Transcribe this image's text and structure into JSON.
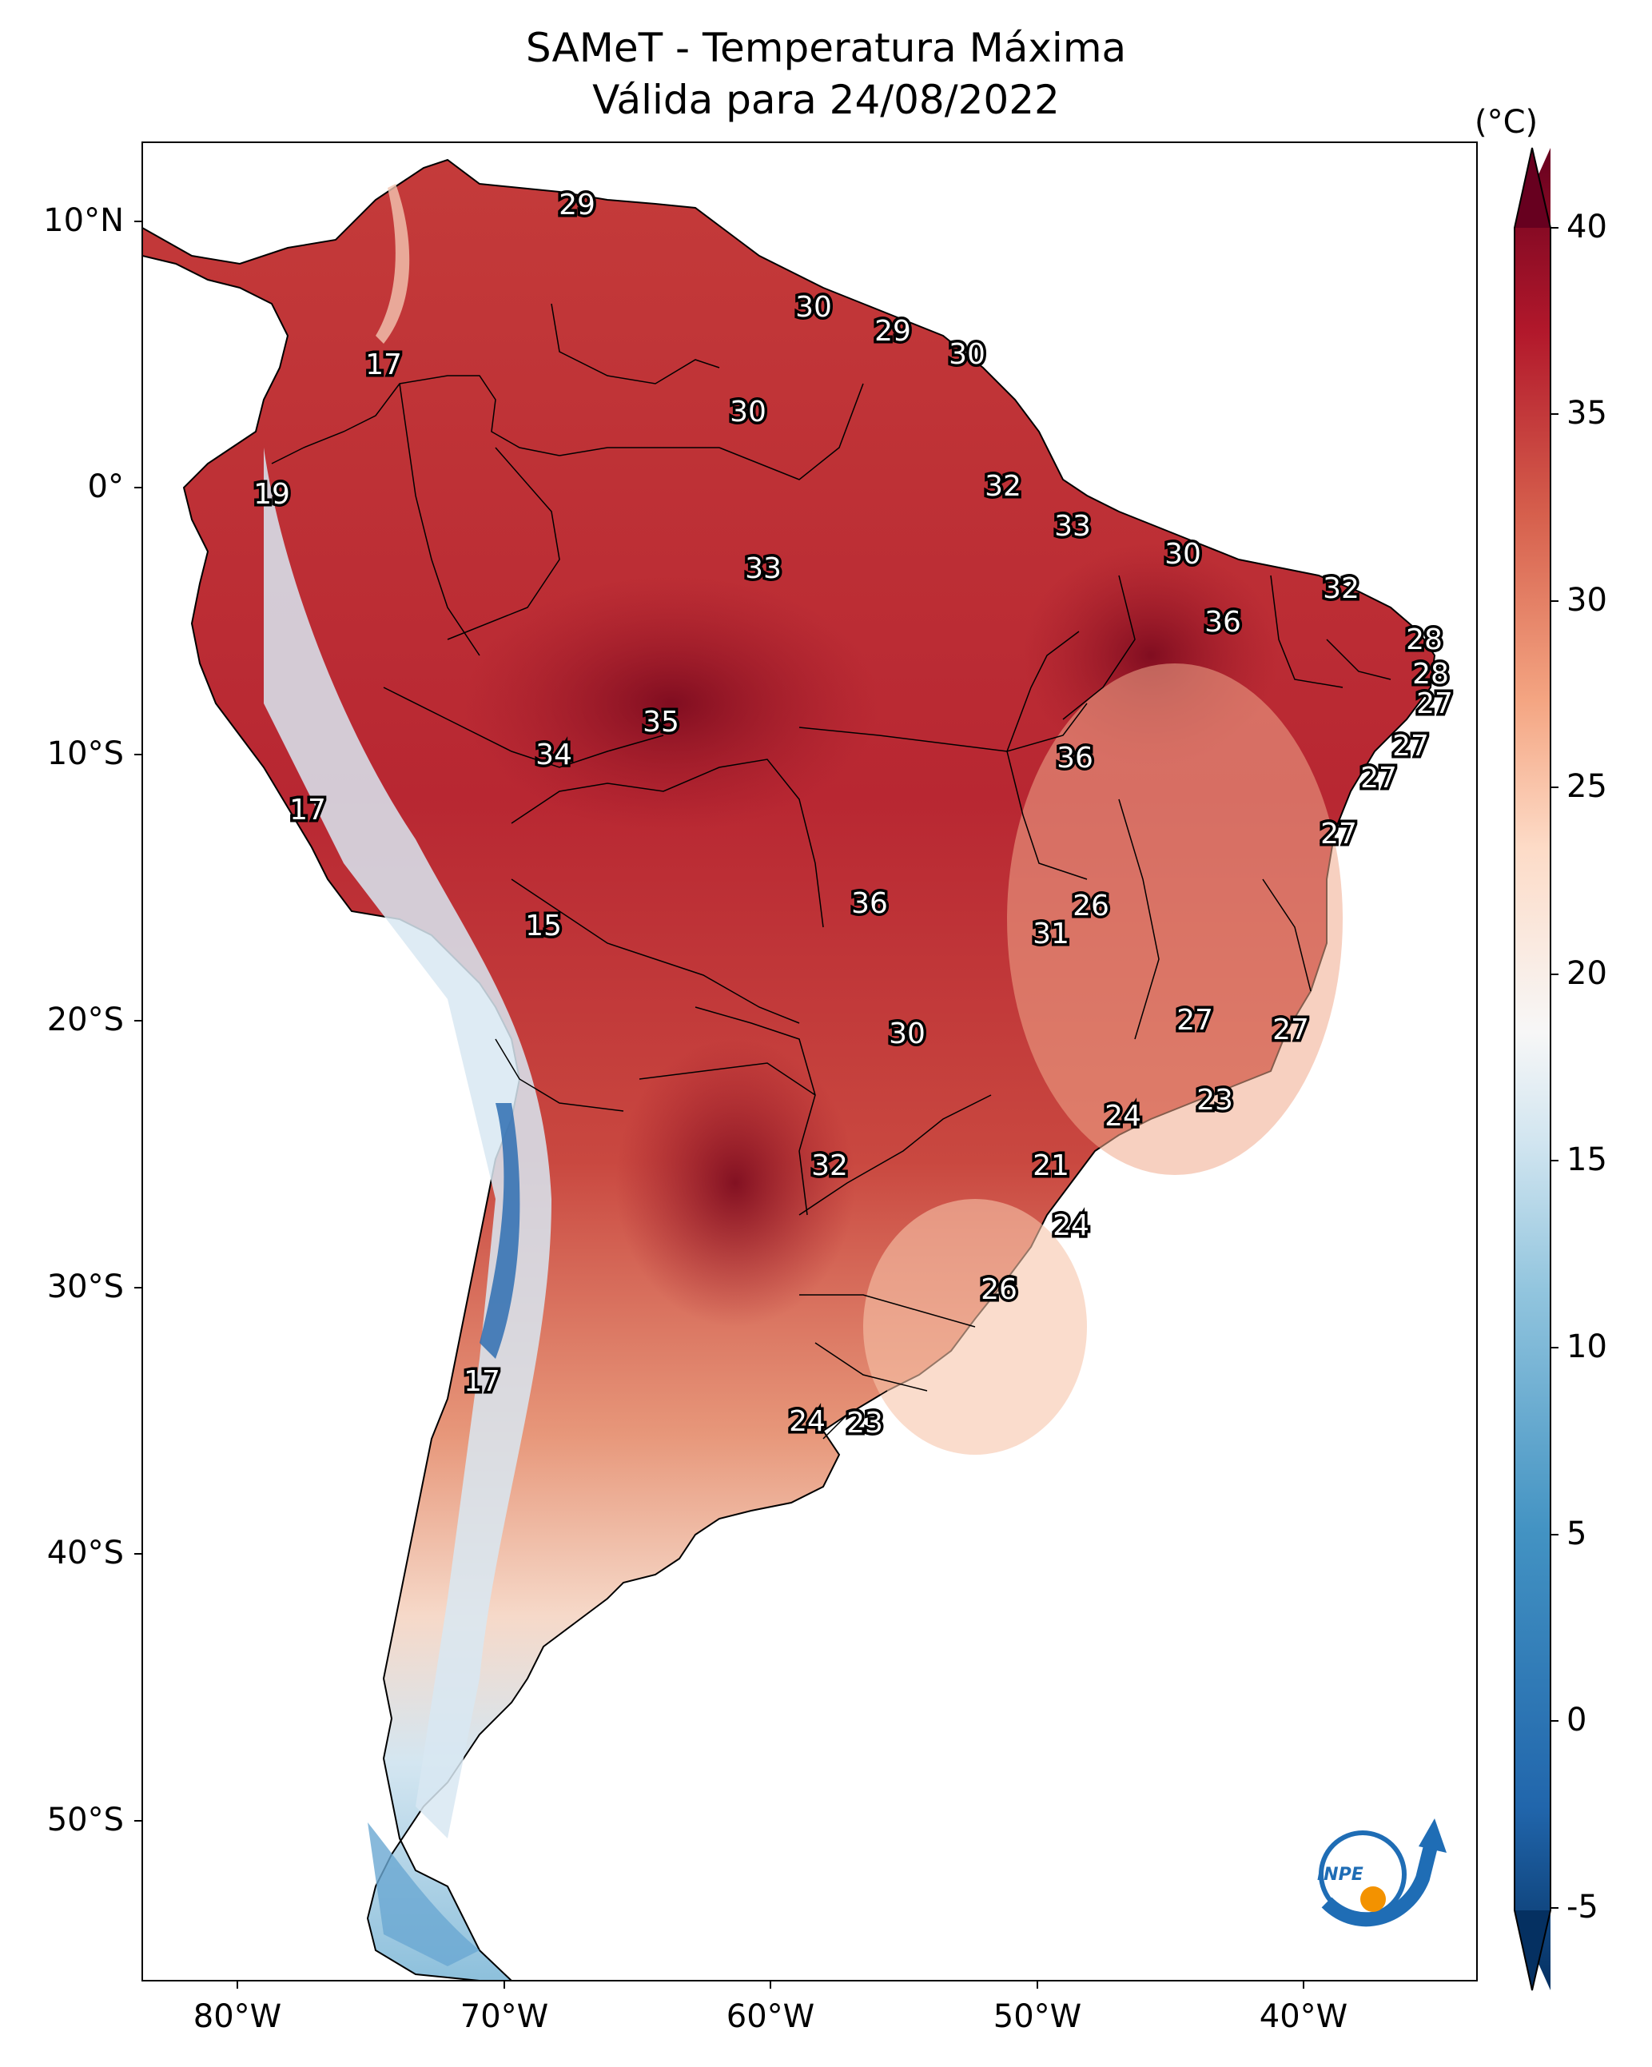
{
  "title": {
    "line1": "SAMeT - Temperatura Máxima",
    "line2": "Válida para 24/08/2022"
  },
  "axes": {
    "lat_ticks": [
      "10°N",
      "0°",
      "10°S",
      "20°S",
      "30°S",
      "40°S",
      "50°S"
    ],
    "lon_ticks": [
      "80°W",
      "70°W",
      "60°W",
      "50°W",
      "40°W"
    ]
  },
  "colorbar": {
    "unit": "(°C)",
    "ticks": [
      "40",
      "35",
      "30",
      "25",
      "20",
      "15",
      "10",
      "5",
      "0",
      "-5"
    ],
    "colormap": "RdBu_r",
    "range": [
      -5,
      40
    ],
    "extend": "both"
  },
  "logo": {
    "text": "INPE"
  },
  "labels": [
    {
      "v": "29"
    },
    {
      "v": "17"
    },
    {
      "v": "30"
    },
    {
      "v": "29"
    },
    {
      "v": "30"
    },
    {
      "v": "30"
    },
    {
      "v": "19"
    },
    {
      "v": "32"
    },
    {
      "v": "33"
    },
    {
      "v": "30"
    },
    {
      "v": "33"
    },
    {
      "v": "32"
    },
    {
      "v": "36"
    },
    {
      "v": "28"
    },
    {
      "v": "28"
    },
    {
      "v": "27"
    },
    {
      "v": "35"
    },
    {
      "v": "27"
    },
    {
      "v": "34"
    },
    {
      "v": "36"
    },
    {
      "v": "27"
    },
    {
      "v": "17"
    },
    {
      "v": "27"
    },
    {
      "v": "26"
    },
    {
      "v": "15"
    },
    {
      "v": "36"
    },
    {
      "v": "31"
    },
    {
      "v": "27"
    },
    {
      "v": "27"
    },
    {
      "v": "30"
    },
    {
      "v": "23"
    },
    {
      "v": "24"
    },
    {
      "v": "32"
    },
    {
      "v": "21"
    },
    {
      "v": "24"
    },
    {
      "v": "26"
    },
    {
      "v": "17"
    },
    {
      "v": "24"
    },
    {
      "v": "23"
    }
  ],
  "colors": {
    "hot": "#a01a27",
    "warm": "#d6604d",
    "mild": "#f4a582",
    "neutral": "#f7f7f7",
    "cool": "#92c5de",
    "cold": "#2166ac",
    "accent_logo": "#f39200"
  }
}
